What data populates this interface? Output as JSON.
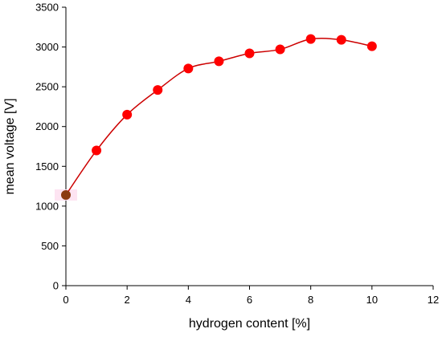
{
  "chart_data": {
    "type": "scatter",
    "title": "",
    "xlabel": "hydrogen content [%]",
    "ylabel": "mean voltage [V]",
    "xlim": [
      0,
      12
    ],
    "ylim": [
      0,
      3500
    ],
    "xticks": [
      0,
      2,
      4,
      6,
      8,
      10,
      12
    ],
    "yticks": [
      0,
      500,
      1000,
      1500,
      2000,
      2500,
      3000,
      3500
    ],
    "grid": false,
    "legend": "none",
    "series": [
      {
        "x": [
          0,
          1,
          2,
          3,
          4,
          5,
          6,
          7,
          8,
          9,
          10
        ],
        "y": [
          1140,
          1700,
          2150,
          2460,
          2730,
          2820,
          2920,
          2970,
          3100,
          3090,
          3010
        ],
        "style": "line-with-markers",
        "smooth": true,
        "color": "#ff0000",
        "line_color": "#cc0000",
        "first_point_color": "#8b3a10",
        "first_point_highlight": "#fde4f2"
      }
    ]
  }
}
